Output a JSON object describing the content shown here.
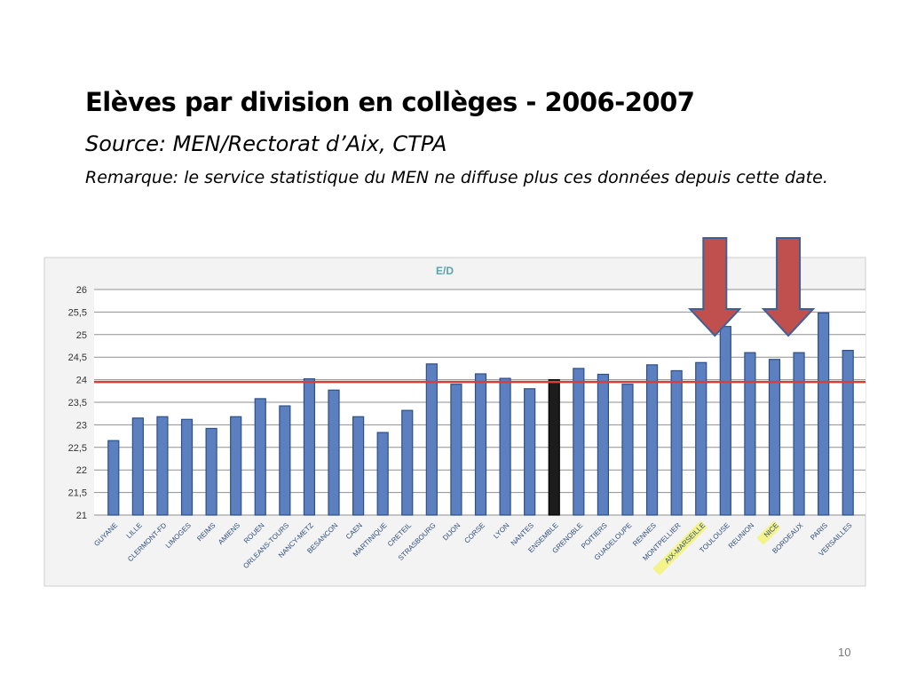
{
  "slide": {
    "title": "Elèves par division en collèges - 2006-2007",
    "source": "Source: MEN/Rectorat d’Aix, CTPA",
    "remark": "Remarque: le service statistique du MEN ne diffuse plus ces données depuis cette date.",
    "page_number": "10"
  },
  "chart_data": {
    "type": "bar",
    "title": "E/D",
    "categories": [
      "GUYANE",
      "LILLE",
      "CLERMONT-FD",
      "LIMOGES",
      "REIMS",
      "AMIENS",
      "ROUEN",
      "ORLEANS-TOURS",
      "NANCY-METZ",
      "BESANCON",
      "CAEN",
      "MARTINIQUE",
      "CRETEIL",
      "STRASBOURG",
      "DIJON",
      "CORSE",
      "LYON",
      "NANTES",
      "ENSEMBLE",
      "GRENOBLE",
      "POITIERS",
      "GUADELOUPE",
      "RENNES",
      "MONTPELLIER",
      "AIX-MARSEILLE",
      "TOULOUSE",
      "REUNION",
      "NICE",
      "BORDEAUX",
      "PARIS",
      "VERSAILLES"
    ],
    "values": [
      22.65,
      23.15,
      23.18,
      23.12,
      22.92,
      23.18,
      23.58,
      23.42,
      24.02,
      23.77,
      23.18,
      22.83,
      23.32,
      24.35,
      23.9,
      24.13,
      24.03,
      23.8,
      24.0,
      24.25,
      24.12,
      23.9,
      24.33,
      24.2,
      24.38,
      25.18,
      24.6,
      24.45,
      24.6,
      25.48,
      24.65
    ],
    "highlight": [
      "ENSEMBLE"
    ],
    "highlighted_labels": [
      "AIX-MARSEILLE",
      "NICE"
    ],
    "arrow_targets": [
      "TOULOUSE",
      "BORDEAUX"
    ],
    "ylim": [
      21,
      26
    ],
    "yticks": [
      "21",
      "21,5",
      "22",
      "22,5",
      "23",
      "23,5",
      "24",
      "24,5",
      "25",
      "25,5",
      "26"
    ],
    "reference_line": 23.95,
    "grid": true,
    "colors": {
      "bar": "#5b7fbf",
      "bar_edge": "#2e4f86",
      "highlight_bar": "#1c1c1c",
      "reference_line": "#d4403a",
      "title": "#5aa3b0",
      "label_highlight": "#f4f38a",
      "arrow_fill": "#c0504d",
      "arrow_edge": "#3f5f96"
    }
  }
}
